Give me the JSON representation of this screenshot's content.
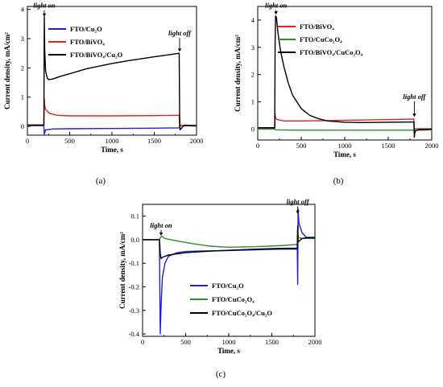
{
  "chart_data": [
    {
      "id": "a",
      "type": "line",
      "panel_label": "(a)",
      "xlabel": "Time, s",
      "ylabel": "Current density, mA/cm²",
      "xlim": [
        0,
        2000
      ],
      "ylim": [
        -0.3,
        4.1
      ],
      "xticks": [
        0,
        500,
        1000,
        1500,
        2000
      ],
      "yticks": [
        0,
        1,
        2,
        3,
        4
      ],
      "legend": "top-left",
      "annotations": [
        {
          "text": "light on",
          "x": 200,
          "y": 4.0,
          "arrow_to": 3.75
        },
        {
          "text": "light off",
          "x": 1800,
          "y": 3.05,
          "arrow_to": 2.55
        }
      ],
      "series": [
        {
          "name": "FTO/Cu₂O",
          "color": "#1f1fe0",
          "x": [
            0,
            195,
            200,
            205,
            215,
            300,
            500,
            1000,
            1500,
            1795,
            1800,
            1805,
            1850,
            2000
          ],
          "y": [
            0.02,
            0.02,
            -0.28,
            -0.22,
            -0.12,
            -0.09,
            -0.08,
            -0.07,
            -0.06,
            -0.05,
            0.06,
            0.03,
            0.02,
            0.01
          ]
        },
        {
          "name": "FTO/BiVO₄",
          "color": "#e81f1f",
          "x": [
            0,
            195,
            200,
            205,
            215,
            260,
            350,
            500,
            1000,
            1500,
            1795,
            1800,
            1805,
            1850,
            2000
          ],
          "y": [
            0.04,
            0.04,
            0.95,
            0.72,
            0.58,
            0.45,
            0.38,
            0.36,
            0.36,
            0.37,
            0.38,
            -0.05,
            0.04,
            0.02,
            0.02
          ]
        },
        {
          "name": "FTO/BiVO₄/Cu₂O",
          "color": "#000000",
          "x": [
            0,
            195,
            200,
            205,
            215,
            235,
            250,
            300,
            400,
            500,
            700,
            1000,
            1200,
            1500,
            1700,
            1795,
            1800,
            1805,
            1850,
            2000
          ],
          "y": [
            0.05,
            0.05,
            3.75,
            2.6,
            1.9,
            1.65,
            1.6,
            1.62,
            1.72,
            1.8,
            1.97,
            2.15,
            2.25,
            2.38,
            2.46,
            2.5,
            0.45,
            -0.12,
            0.04,
            0.03
          ]
        }
      ]
    },
    {
      "id": "b",
      "type": "line",
      "panel_label": "(b)",
      "xlabel": "Time, s",
      "ylabel": "Current density, mA/cm²",
      "xlim": [
        0,
        2000
      ],
      "ylim": [
        -0.4,
        4.5
      ],
      "xticks": [
        0,
        500,
        1000,
        1500,
        2000
      ],
      "yticks": [
        0,
        1,
        2,
        3,
        4
      ],
      "legend": "top-right",
      "annotations": [
        {
          "text": "light on",
          "x": 210,
          "y": 4.4,
          "arrow_to": 4.2
        },
        {
          "text": "light off",
          "x": 1800,
          "y": 1.05,
          "arrow_to": 0.45
        }
      ],
      "series": [
        {
          "name": "FTO/BiVO₄",
          "color": "#e81f1f",
          "x": [
            0,
            195,
            200,
            205,
            220,
            300,
            500,
            1000,
            1500,
            1795,
            1800,
            1805,
            1850,
            2000
          ],
          "y": [
            0.02,
            0.02,
            0.55,
            0.42,
            0.35,
            0.3,
            0.3,
            0.32,
            0.35,
            0.37,
            -0.02,
            0.02,
            0.01,
            0.01
          ]
        },
        {
          "name": "FTO/CuCo₂O₄",
          "color": "#2e8b2e",
          "x": [
            0,
            195,
            200,
            205,
            220,
            500,
            1000,
            1500,
            1795,
            1800,
            1805,
            1850,
            2000
          ],
          "y": [
            0.0,
            0.0,
            -0.02,
            -0.03,
            -0.03,
            -0.04,
            -0.04,
            -0.04,
            -0.04,
            -0.03,
            -0.04,
            -0.04,
            -0.03
          ]
        },
        {
          "name": "FTO/BiVO₄/CuCo₂O₄",
          "color": "#000000",
          "x": [
            0,
            195,
            200,
            205,
            215,
            230,
            260,
            300,
            350,
            400,
            500,
            600,
            700,
            800,
            1000,
            1200,
            1500,
            1795,
            1800,
            1805,
            1815,
            1850,
            2000
          ],
          "y": [
            0.05,
            0.05,
            3.2,
            4.15,
            4.1,
            3.6,
            2.9,
            2.3,
            1.7,
            1.25,
            0.75,
            0.5,
            0.38,
            0.3,
            0.25,
            0.24,
            0.25,
            0.26,
            -0.3,
            -0.15,
            -0.06,
            -0.02,
            0.0
          ]
        }
      ]
    },
    {
      "id": "c",
      "type": "line",
      "panel_label": "(c)",
      "xlabel": "Time, s",
      "ylabel": "Current density, mA/cm²",
      "xlim": [
        0,
        2000
      ],
      "ylim": [
        -0.41,
        0.15
      ],
      "xticks": [
        0,
        500,
        1000,
        1500,
        2000
      ],
      "yticks": [
        0.1,
        0.0,
        -0.1,
        -0.2,
        -0.3,
        -0.4
      ],
      "legend": "bottom-left",
      "annotations": [
        {
          "text": "light on",
          "x": 215,
          "y": 0.045,
          "arrow_to": 0.017
        },
        {
          "text": "light off",
          "x": 1800,
          "y": 0.145,
          "arrow_to": 0.11
        }
      ],
      "series": [
        {
          "name": "FTO/Cu₂O",
          "color": "#1f1fe0",
          "x": [
            0,
            195,
            200,
            205,
            215,
            230,
            260,
            300,
            400,
            500,
            700,
            1000,
            1300,
            1600,
            1795,
            1800,
            1805,
            1815,
            1850,
            1900,
            2000
          ],
          "y": [
            0.0,
            0.0,
            -0.2,
            -0.4,
            -0.28,
            -0.16,
            -0.1,
            -0.07,
            -0.055,
            -0.05,
            -0.048,
            -0.046,
            -0.043,
            -0.04,
            -0.04,
            -0.19,
            0.13,
            0.07,
            0.03,
            0.01,
            0.01
          ]
        },
        {
          "name": "FTO/CuCo₂O₄",
          "color": "#2e8b2e",
          "x": [
            0,
            100,
            195,
            200,
            220,
            260,
            400,
            600,
            800,
            1000,
            1300,
            1600,
            1795,
            1800,
            1805,
            1850,
            1900,
            2000
          ],
          "y": [
            0.0,
            0.0,
            0.0,
            0.005,
            0.015,
            0.005,
            -0.005,
            -0.018,
            -0.028,
            -0.032,
            -0.03,
            -0.025,
            -0.02,
            0.04,
            0.01,
            0.005,
            0.005,
            0.005
          ]
        },
        {
          "name": "FTO/CuCo₂O₄/Cu₂O",
          "color": "#000000",
          "x": [
            0,
            195,
            200,
            205,
            215,
            230,
            300,
            500,
            800,
            1000,
            1300,
            1600,
            1795,
            1800,
            1805,
            1850,
            1900,
            2000
          ],
          "y": [
            0.0,
            0.0,
            -0.02,
            -0.06,
            -0.08,
            -0.075,
            -0.065,
            -0.055,
            -0.048,
            -0.045,
            -0.04,
            -0.037,
            -0.036,
            0.06,
            -0.01,
            0.005,
            0.008,
            0.008
          ]
        }
      ]
    }
  ]
}
